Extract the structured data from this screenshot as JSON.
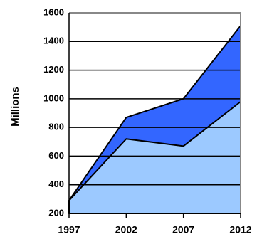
{
  "chart_data": {
    "type": "area",
    "y_label": "Millions",
    "x": [
      1997,
      2002,
      2007,
      2012
    ],
    "series": [
      {
        "color": "#3366ff",
        "values": [
          290,
          870,
          1000,
          1510
        ]
      },
      {
        "color": "#9cc9ff",
        "values": [
          290,
          720,
          670,
          980
        ]
      }
    ],
    "xlim": [
      1997,
      2012
    ],
    "xticks": [
      1997,
      2002,
      2007,
      2012
    ],
    "ylim": [
      200,
      1600
    ],
    "yticks": [
      200,
      400,
      600,
      800,
      1000,
      1200,
      1400,
      1600
    ],
    "grid": true
  }
}
